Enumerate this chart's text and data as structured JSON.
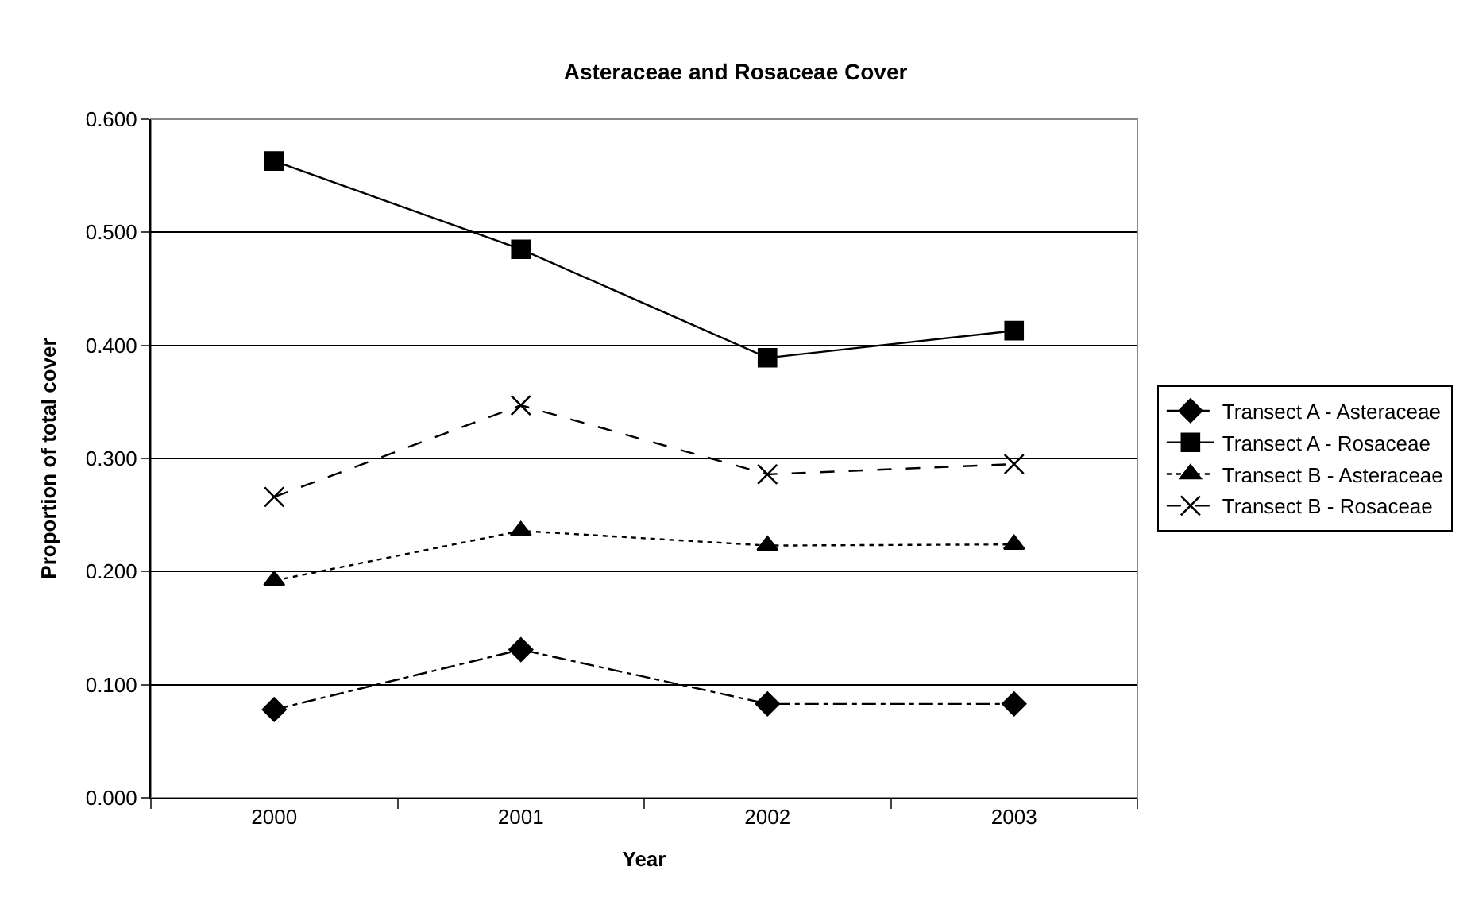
{
  "chart_data": {
    "type": "line",
    "title": "Asteraceae and Rosaceae Cover",
    "xlabel": "Year",
    "ylabel": "Proportion of total cover",
    "categories": [
      "2000",
      "2001",
      "2002",
      "2003"
    ],
    "series": [
      {
        "name": "Transect A - Asteraceae",
        "color": "#000000",
        "marker": "diamond",
        "line_style": "dashdot",
        "values": [
          0.078,
          0.131,
          0.083,
          0.083
        ]
      },
      {
        "name": "Transect A - Rosaceae",
        "color": "#000000",
        "marker": "square",
        "line_style": "solid",
        "values": [
          0.563,
          0.485,
          0.389,
          0.413
        ]
      },
      {
        "name": "Transect B - Asteraceae",
        "color": "#000000",
        "marker": "triangle",
        "line_style": "dotted",
        "values": [
          0.192,
          0.236,
          0.223,
          0.224
        ]
      },
      {
        "name": "Transect B - Rosaceae",
        "color": "#000000",
        "marker": "cross",
        "line_style": "dashed",
        "values": [
          0.266,
          0.347,
          0.286,
          0.295
        ]
      }
    ],
    "ylim": [
      0,
      0.6
    ],
    "yticks": [
      {
        "value": 0,
        "label": "0.000"
      },
      {
        "value": 0.1,
        "label": "0.100"
      },
      {
        "value": 0.2,
        "label": "0.200"
      },
      {
        "value": 0.3,
        "label": "0.300"
      },
      {
        "value": 0.4,
        "label": "0.400"
      },
      {
        "value": 0.5,
        "label": "0.500"
      },
      {
        "value": 0.6,
        "label": "0.600"
      }
    ],
    "grid": "y",
    "legend": "right"
  }
}
